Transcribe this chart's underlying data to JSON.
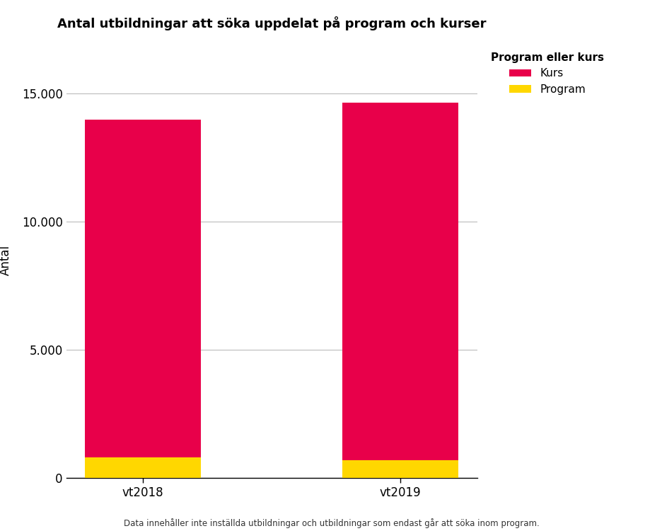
{
  "title": "Antal utbildningar att söka uppdelat på program och kurser",
  "categories": [
    "vt2018",
    "vt2019"
  ],
  "kurs_values": [
    13200,
    13950
  ],
  "program_values": [
    800,
    700
  ],
  "kurs_color": "#E8004A",
  "program_color": "#FFD700",
  "ylabel": "Antal",
  "legend_title": "Program eller kurs",
  "legend_labels": [
    "Kurs",
    "Program"
  ],
  "ylim": [
    0,
    17000
  ],
  "yticks": [
    0,
    5000,
    10000,
    15000
  ],
  "ytick_labels": [
    "0",
    "5.000",
    "10.000",
    "15.000"
  ],
  "footnote": "Data innehåller inte inställda utbildningar och utbildningar som endast går att söka inom program.",
  "bg_color": "#FFFFFF",
  "grid_color": "#BBBBBB",
  "bar_width": 0.45
}
